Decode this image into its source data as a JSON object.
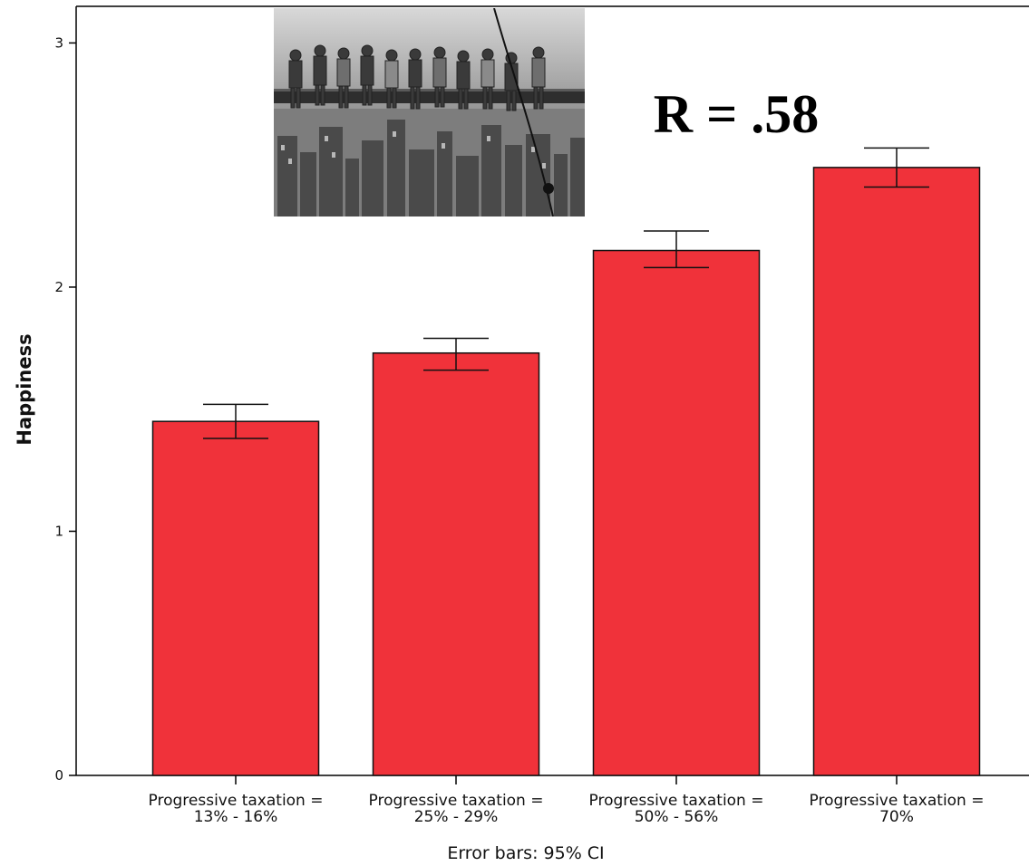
{
  "chart_data": {
    "type": "bar",
    "categories": [
      [
        "Progressive taxation =",
        "13% - 16%"
      ],
      [
        "Progressive taxation =",
        "25% - 29%"
      ],
      [
        "Progressive taxation =",
        "50% - 56%"
      ],
      [
        "Progressive taxation =",
        "70%"
      ]
    ],
    "values": [
      1.45,
      1.73,
      2.15,
      2.49
    ],
    "error_low": [
      1.38,
      1.66,
      2.08,
      2.41
    ],
    "error_high": [
      1.52,
      1.79,
      2.23,
      2.57
    ],
    "ylim": [
      0,
      3.15
    ],
    "yticks": [
      0,
      1,
      2,
      3
    ],
    "ylabel": "Happiness",
    "xlabel": "",
    "caption": "Error bars: 95% CI",
    "annotation": "R = .58",
    "bar_color": "#f0323a",
    "grid": false,
    "inset_image": "grayscale-photo-workers-on-steel-beam-above-city"
  }
}
